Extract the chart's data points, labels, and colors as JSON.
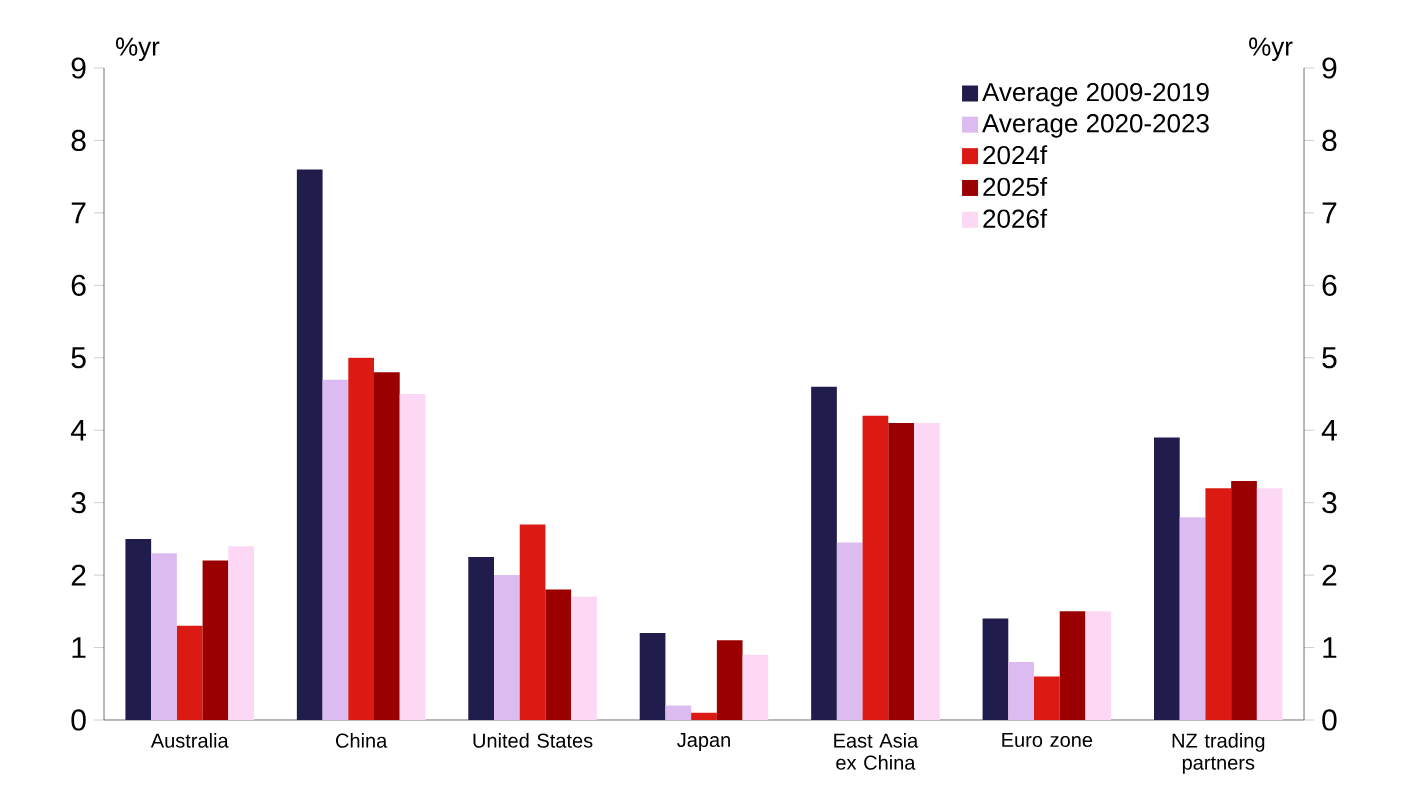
{
  "chart_data": {
    "type": "bar",
    "categories": [
      "Australia",
      "China",
      "United States",
      "Japan",
      "East Asia ex China",
      "Euro zone",
      "NZ trading partners"
    ],
    "series": [
      {
        "name": "Average 2009-2019",
        "color": "#201c4c",
        "values": [
          2.5,
          7.6,
          2.25,
          1.2,
          4.6,
          1.4,
          3.9
        ]
      },
      {
        "name": "Average 2020-2023",
        "color": "#dcbcf0",
        "values": [
          2.3,
          4.7,
          2.0,
          0.2,
          2.45,
          0.8,
          2.8
        ]
      },
      {
        "name": "2024f",
        "color": "#dc1a14",
        "values": [
          1.3,
          5.0,
          2.7,
          0.1,
          4.2,
          0.6,
          3.2
        ]
      },
      {
        "name": "2025f",
        "color": "#9a0000",
        "values": [
          2.2,
          4.8,
          1.8,
          1.1,
          4.1,
          1.5,
          3.3
        ]
      },
      {
        "name": "2026f",
        "color": "#fcd8f4",
        "values": [
          2.4,
          4.5,
          1.7,
          0.9,
          4.1,
          1.5,
          3.2
        ]
      }
    ],
    "ylabel": "%yr",
    "y2label": "%yr",
    "ylim": [
      0,
      9
    ],
    "yticks": [
      0,
      1,
      2,
      3,
      4,
      5,
      6,
      7,
      8,
      9
    ],
    "y2lim": [
      0,
      9
    ],
    "y2ticks": [
      0,
      1,
      2,
      3,
      4,
      5,
      6,
      7,
      8,
      9
    ],
    "legend": "top right"
  }
}
